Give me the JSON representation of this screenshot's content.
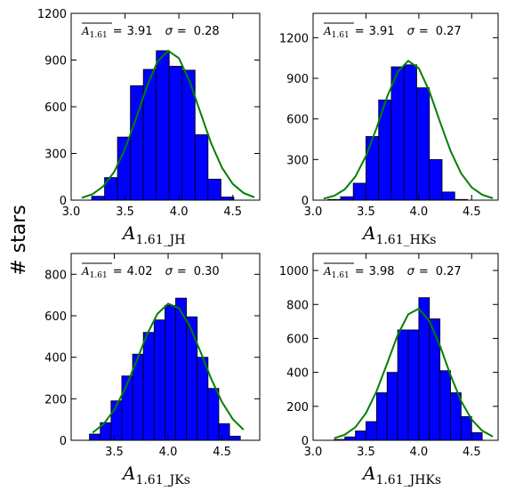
{
  "ylabel": "# stars",
  "chart_data": [
    {
      "type": "histogram",
      "bins": [
        3.19,
        3.31,
        3.43,
        3.55,
        3.67,
        3.79,
        3.91,
        4.03,
        4.15,
        4.27,
        4.39,
        4.51
      ],
      "counts": [
        25,
        145,
        405,
        735,
        840,
        960,
        860,
        835,
        420,
        135,
        20
      ],
      "color": "#0000ff",
      "curve": {
        "x": [
          3.1,
          3.2,
          3.3,
          3.4,
          3.5,
          3.6,
          3.7,
          3.8,
          3.9,
          4.0,
          4.1,
          4.2,
          4.3,
          4.4,
          4.5,
          4.6,
          4.7
        ],
        "values": [
          15,
          39,
          90,
          182,
          329,
          519,
          725,
          889,
          960,
          912,
          763,
          562,
          364,
          208,
          104,
          46,
          18
        ],
        "color": "#008000"
      },
      "xlim": [
        3.0,
        4.75
      ],
      "xticks": [
        {
          "value": 3,
          "label": "3.0"
        },
        3.5,
        {
          "value": 4,
          "label": "4.0"
        },
        4.5
      ],
      "ylim": [
        0,
        1200
      ],
      "yticks": [
        0,
        300,
        600,
        900,
        1200
      ],
      "annotation": {
        "symbol": "A",
        "subscript": "1.61",
        "equals": "=",
        "mean": "3.91",
        "sigma_symbol": "σ",
        "sigma": "0.28"
      },
      "xlabel": {
        "symbol": "A",
        "subscript": "1.61_JH"
      }
    },
    {
      "type": "histogram",
      "bins": [
        3.14,
        3.26,
        3.38,
        3.5,
        3.62,
        3.74,
        3.86,
        3.98,
        4.1,
        4.22,
        4.34,
        4.46
      ],
      "counts": [
        5,
        25,
        125,
        470,
        740,
        985,
        1000,
        830,
        300,
        60,
        5
      ],
      "color": "#0000ff",
      "curve": {
        "x": [
          3.1,
          3.2,
          3.3,
          3.4,
          3.5,
          3.6,
          3.7,
          3.8,
          3.9,
          4.0,
          4.1,
          4.2,
          4.3,
          4.4,
          4.5,
          4.6,
          4.7
        ],
        "values": [
          11,
          32,
          80,
          174,
          326,
          532,
          763,
          948,
          1029,
          974,
          804,
          579,
          364,
          198,
          94,
          40,
          14
        ],
        "color": "#008000"
      },
      "xlim": [
        3.0,
        4.75
      ],
      "xticks": [
        {
          "value": 3,
          "label": "3.0"
        },
        3.5,
        {
          "value": 4,
          "label": "4.0"
        },
        4.5
      ],
      "ylim": [
        0,
        1380
      ],
      "yticks": [
        0,
        300,
        600,
        900,
        1200
      ],
      "annotation": {
        "symbol": "A",
        "subscript": "1.61",
        "equals": "=",
        "mean": "3.91",
        "sigma_symbol": "σ",
        "sigma": "0.27"
      },
      "xlabel": {
        "symbol": "A",
        "subscript": "1.61_HKs"
      }
    },
    {
      "type": "histogram",
      "bins": [
        3.27,
        3.37,
        3.47,
        3.57,
        3.67,
        3.77,
        3.87,
        3.97,
        4.07,
        4.17,
        4.27,
        4.37,
        4.47,
        4.57,
        4.67
      ],
      "counts": [
        30,
        85,
        190,
        310,
        415,
        520,
        580,
        650,
        685,
        595,
        400,
        250,
        80,
        20
      ],
      "color": "#0000ff",
      "curve": {
        "x": [
          3.3,
          3.4,
          3.5,
          3.6,
          3.7,
          3.8,
          3.9,
          4.0,
          4.1,
          4.2,
          4.3,
          4.4,
          4.5,
          4.6,
          4.7
        ],
        "values": [
          37,
          78,
          147,
          248,
          373,
          505,
          609,
          658,
          637,
          551,
          427,
          296,
          184,
          102,
          51
        ],
        "color": "#008000"
      },
      "xlim": [
        3.1,
        4.85
      ],
      "xticks": [
        3.5,
        {
          "value": 4,
          "label": "4.0"
        },
        4.5
      ],
      "ylim": [
        0,
        900
      ],
      "yticks": [
        0,
        200,
        400,
        600,
        800
      ],
      "annotation": {
        "symbol": "A",
        "subscript": "1.61",
        "equals": "=",
        "mean": "4.02",
        "sigma_symbol": "σ",
        "sigma": "0.30"
      },
      "xlabel": {
        "symbol": "A",
        "subscript": "1.61_JKs"
      }
    },
    {
      "type": "histogram",
      "bins": [
        3.2,
        3.3,
        3.4,
        3.5,
        3.6,
        3.7,
        3.8,
        3.9,
        4.0,
        4.1,
        4.2,
        4.3,
        4.4,
        4.5,
        4.6
      ],
      "counts": [
        5,
        20,
        55,
        110,
        280,
        400,
        650,
        650,
        840,
        715,
        410,
        280,
        140,
        45
      ],
      "color": "#0000ff",
      "curve": {
        "x": [
          3.2,
          3.3,
          3.4,
          3.5,
          3.6,
          3.7,
          3.8,
          3.9,
          4.0,
          4.1,
          4.2,
          4.3,
          4.4,
          4.5,
          4.6,
          4.7
        ],
        "values": [
          12,
          33,
          77,
          160,
          288,
          452,
          620,
          742,
          775,
          702,
          557,
          384,
          231,
          122,
          56,
          22
        ],
        "color": "#008000"
      },
      "xlim": [
        3.0,
        4.75
      ],
      "xticks": [
        {
          "value": 3,
          "label": "3.0"
        },
        3.5,
        {
          "value": 4,
          "label": "4.0"
        },
        4.5
      ],
      "ylim": [
        0,
        1100
      ],
      "yticks": [
        0,
        200,
        400,
        600,
        800,
        1000
      ],
      "annotation": {
        "symbol": "A",
        "subscript": "1.61",
        "equals": "=",
        "mean": "3.98",
        "sigma_symbol": "σ",
        "sigma": "0.27"
      },
      "xlabel": {
        "symbol": "A",
        "subscript": "1.61_JHKs"
      }
    }
  ]
}
